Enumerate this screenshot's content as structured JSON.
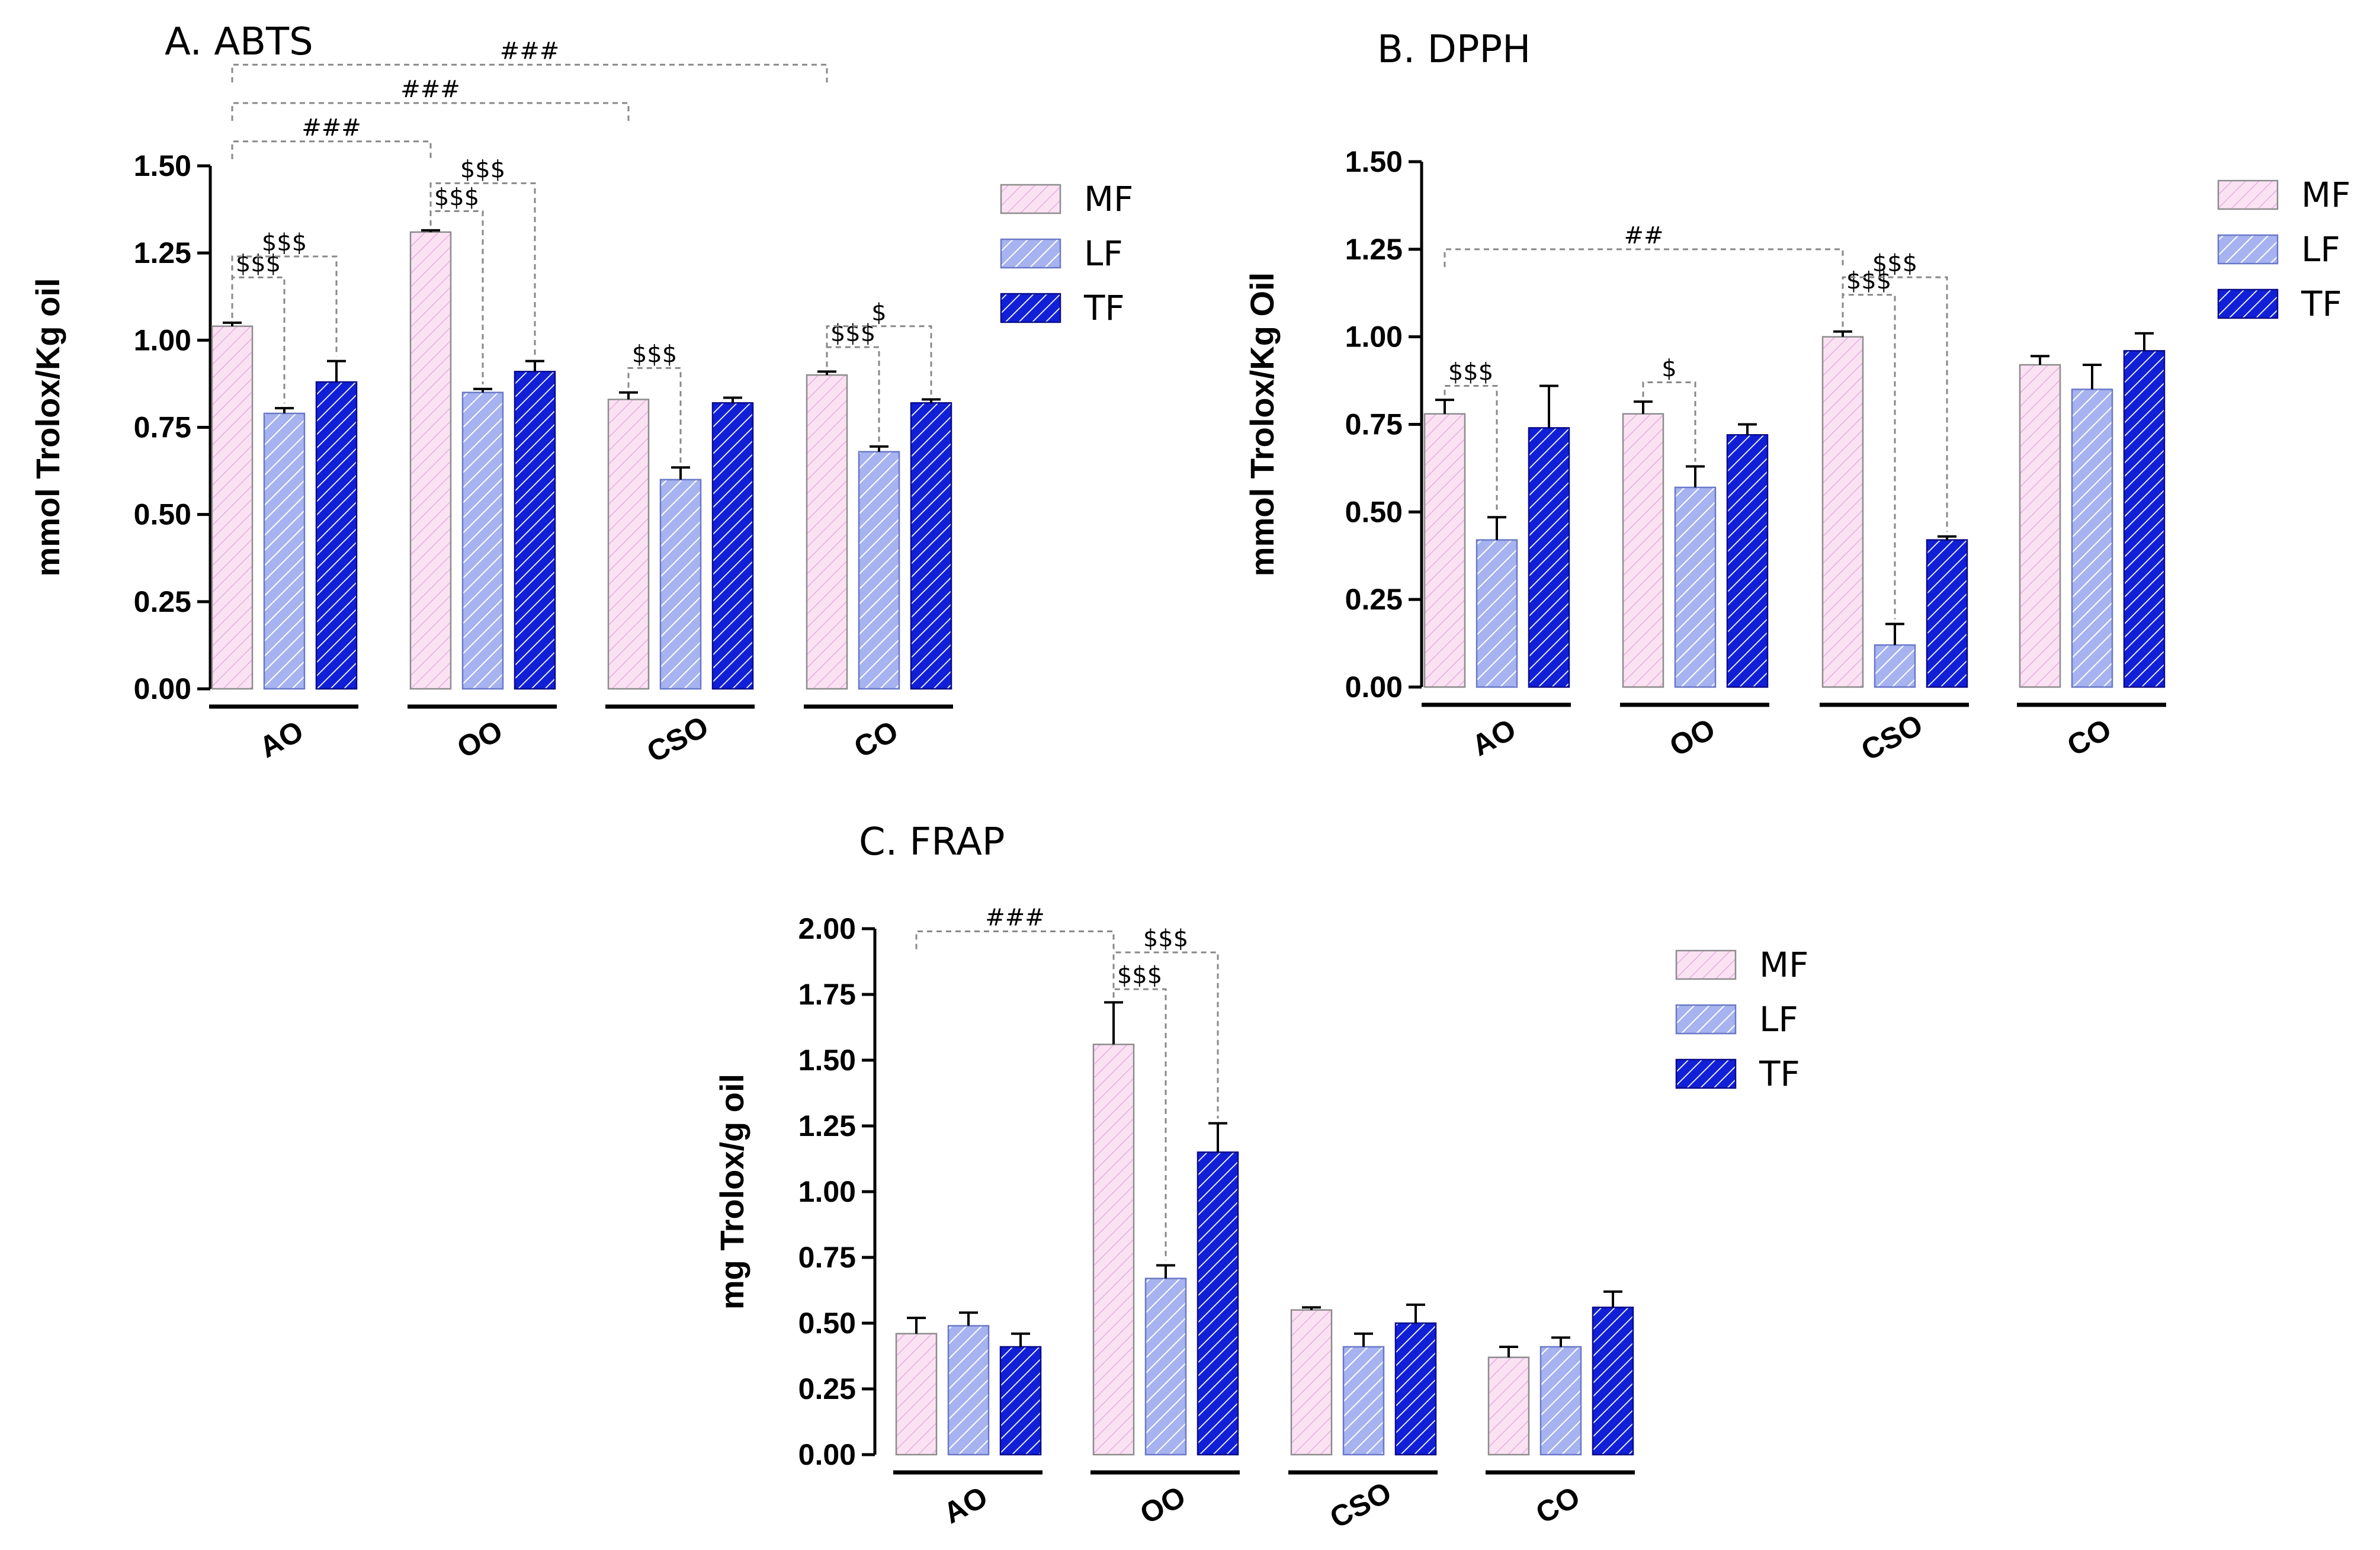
{
  "chart_data": [
    {
      "id": "abts",
      "type": "bar",
      "title": "A. ABTS",
      "ylabel": "mmol Trolox/Kg oil",
      "ylim": [
        0,
        1.5
      ],
      "yticks": [
        "0.00",
        "0.25",
        "0.50",
        "0.75",
        "1.00",
        "1.25",
        "1.50"
      ],
      "categories": [
        "AO",
        "OO",
        "CSO",
        "CO"
      ],
      "series": [
        {
          "name": "MF",
          "values": [
            1.04,
            1.31,
            0.83,
            0.9
          ],
          "errors": [
            0.01,
            0.005,
            0.02,
            0.01
          ]
        },
        {
          "name": "LF",
          "values": [
            0.79,
            0.85,
            0.6,
            0.68
          ],
          "errors": [
            0.015,
            0.01,
            0.035,
            0.015
          ]
        },
        {
          "name": "TF",
          "values": [
            0.88,
            0.91,
            0.82,
            0.82
          ],
          "errors": [
            0.06,
            0.03,
            0.015,
            0.01
          ]
        }
      ],
      "annotations": [
        {
          "label": "$$$",
          "category": 0,
          "from": 0,
          "to": 1,
          "y": 1.18
        },
        {
          "label": "$$$",
          "category": 0,
          "from": 0,
          "to": 2,
          "y": 1.24
        },
        {
          "label": "$$$",
          "category": 1,
          "from": 0,
          "to": 1,
          "y": 1.37
        },
        {
          "label": "$$$",
          "category": 1,
          "from": 0,
          "to": 2,
          "y": 1.45
        },
        {
          "label": "$$$",
          "category": 2,
          "from": 0,
          "to": 1,
          "y": 0.92
        },
        {
          "label": "$$$",
          "category": 3,
          "from": 0,
          "to": 1,
          "y": 0.98
        },
        {
          "label": "$",
          "category": 3,
          "from": 0,
          "to": 2,
          "y": 1.04
        }
      ],
      "comparisons": [
        {
          "label": "###",
          "from_category": 0,
          "to_category": 1,
          "y": 1.57
        },
        {
          "label": "###",
          "from_category": 0,
          "to_category": 2,
          "y": 1.68
        },
        {
          "label": "###",
          "from_category": 0,
          "to_category": 3,
          "y": 1.79
        }
      ]
    },
    {
      "id": "dpph",
      "type": "bar",
      "title": "B. DPPH",
      "ylabel": "mmol Trolox/Kg Oil",
      "ylim": [
        0,
        1.5
      ],
      "yticks": [
        "0.00",
        "0.25",
        "0.50",
        "0.75",
        "1.00",
        "1.25",
        "1.50"
      ],
      "categories": [
        "AO",
        "OO",
        "CSO",
        "CO"
      ],
      "series": [
        {
          "name": "MF",
          "values": [
            0.78,
            0.78,
            1.0,
            0.92
          ],
          "errors": [
            0.04,
            0.035,
            0.015,
            0.025
          ]
        },
        {
          "name": "LF",
          "values": [
            0.42,
            0.57,
            0.12,
            0.85
          ],
          "errors": [
            0.065,
            0.06,
            0.06,
            0.07
          ]
        },
        {
          "name": "TF",
          "values": [
            0.74,
            0.72,
            0.42,
            0.96
          ],
          "errors": [
            0.12,
            0.03,
            0.01,
            0.05
          ]
        }
      ],
      "annotations": [
        {
          "label": "$$$",
          "category": 0,
          "from": 0,
          "to": 1,
          "y": 0.86
        },
        {
          "label": "$",
          "category": 1,
          "from": 0,
          "to": 1,
          "y": 0.87
        },
        {
          "label": "$$$",
          "category": 2,
          "from": 0,
          "to": 1,
          "y": 1.12
        },
        {
          "label": "$$$",
          "category": 2,
          "from": 0,
          "to": 2,
          "y": 1.17
        }
      ],
      "comparisons": [
        {
          "label": "##",
          "from_category": 0,
          "to_category": 2,
          "y": 1.25
        }
      ]
    },
    {
      "id": "frap",
      "type": "bar",
      "title": "C. FRAP",
      "ylabel": "mg Trolox/g oil",
      "ylim": [
        0,
        2.0
      ],
      "yticks": [
        "0.00",
        "0.25",
        "0.50",
        "0.75",
        "1.00",
        "1.25",
        "1.50",
        "1.75",
        "2.00"
      ],
      "categories": [
        "AO",
        "OO",
        "CSO",
        "CO"
      ],
      "series": [
        {
          "name": "MF",
          "values": [
            0.46,
            1.56,
            0.55,
            0.37
          ],
          "errors": [
            0.06,
            0.16,
            0.01,
            0.04
          ]
        },
        {
          "name": "LF",
          "values": [
            0.49,
            0.67,
            0.41,
            0.41
          ],
          "errors": [
            0.05,
            0.05,
            0.05,
            0.035
          ]
        },
        {
          "name": "TF",
          "values": [
            0.41,
            1.15,
            0.5,
            0.56
          ],
          "errors": [
            0.05,
            0.11,
            0.07,
            0.06
          ]
        }
      ],
      "annotations": [
        {
          "label": "$$$",
          "category": 1,
          "from": 0,
          "to": 1,
          "y": 1.77
        },
        {
          "label": "$$$",
          "category": 1,
          "from": 0,
          "to": 2,
          "y": 1.91
        }
      ],
      "comparisons": [
        {
          "label": "###",
          "from_category": 0,
          "to_category": 1,
          "y": 1.99
        }
      ]
    }
  ],
  "legend": {
    "items": [
      "MF",
      "LF",
      "TF"
    ]
  },
  "colors": {
    "mf_fill": "#fbe2f3",
    "mf_line": "#e4aee0",
    "mf_edge": "#8c8c8c",
    "lf_fill": "#a6b3f0",
    "lf_line": "#ffffff",
    "lf_edge": "#6a78c8",
    "tf_fill": "#1120d6",
    "tf_line": "#ffffff",
    "tf_edge": "#0a0a8a"
  }
}
